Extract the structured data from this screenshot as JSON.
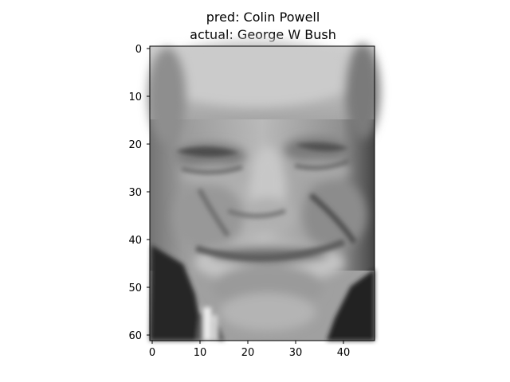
{
  "figure": {
    "title_line_1": "pred: Colin Powell",
    "title_line_2": "actual: George W Bush"
  },
  "image": {
    "description": "grayscale face image",
    "colormap": "gray",
    "rows": 62,
    "cols": 47
  },
  "axes": {
    "x_ticks": [
      0,
      10,
      20,
      30,
      40
    ],
    "y_ticks": [
      0,
      10,
      20,
      30,
      40,
      50,
      60
    ],
    "x_tick_labels": [
      "0",
      "10",
      "20",
      "30",
      "40"
    ],
    "y_tick_labels": [
      "0",
      "10",
      "20",
      "30",
      "40",
      "50",
      "60"
    ],
    "frame_color": "#000000"
  }
}
